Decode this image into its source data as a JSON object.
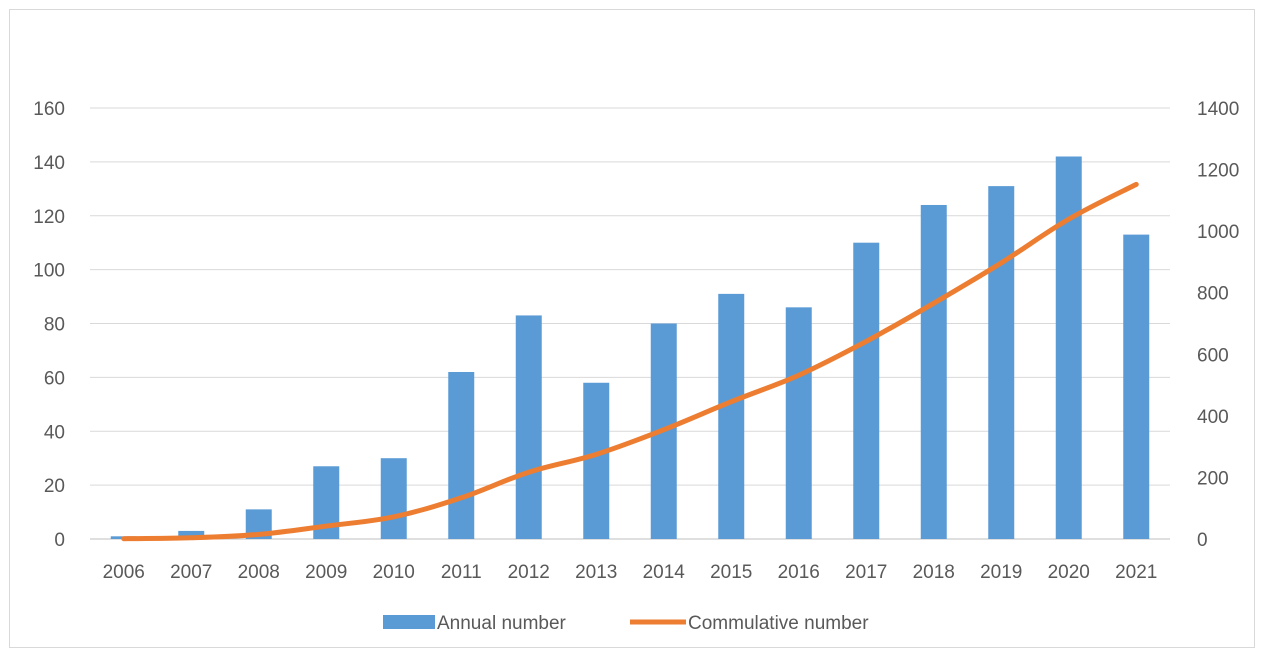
{
  "chart_data": {
    "type": "bar",
    "categories": [
      "2006",
      "2007",
      "2008",
      "2009",
      "2010",
      "2011",
      "2012",
      "2013",
      "2014",
      "2015",
      "2016",
      "2017",
      "2018",
      "2019",
      "2020",
      "2021"
    ],
    "series": [
      {
        "name": "Annual number",
        "type": "bar",
        "axis": "left",
        "color": "#5b9bd5",
        "values": [
          1,
          3,
          11,
          27,
          30,
          62,
          83,
          58,
          80,
          91,
          86,
          110,
          124,
          131,
          142,
          113
        ]
      },
      {
        "name": "Commulative number",
        "type": "line",
        "axis": "right",
        "color": "#ed7d31",
        "values": [
          1,
          4,
          15,
          42,
          72,
          134,
          217,
          275,
          355,
          446,
          532,
          642,
          766,
          897,
          1039,
          1152
        ]
      }
    ],
    "title": "",
    "xlabel": "",
    "ylabel": "",
    "ylim": [
      0,
      160
    ],
    "y2lim": [
      0,
      1400
    ],
    "yticks": [
      0,
      20,
      40,
      60,
      80,
      100,
      120,
      140,
      160
    ],
    "y2ticks": [
      0,
      200,
      400,
      600,
      800,
      1000,
      1200,
      1400
    ],
    "grid": true,
    "legend_position": "bottom"
  }
}
